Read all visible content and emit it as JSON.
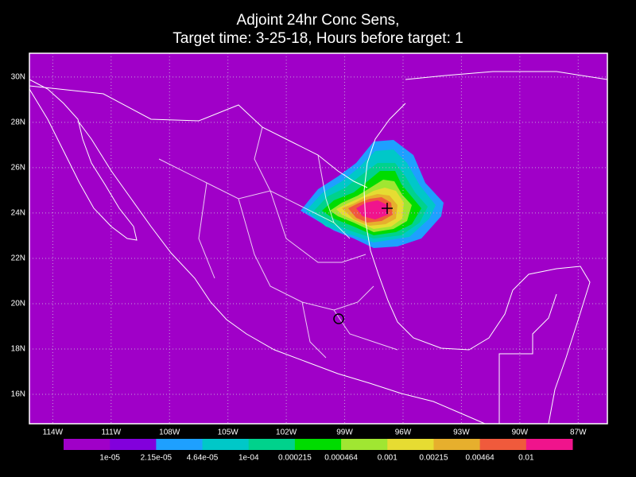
{
  "header": {
    "title_lines": [
      "Adjoint 24hr Conc Sens,",
      "Target time: 3-25-18, Hours before target: 1"
    ]
  },
  "map": {
    "xlim": [
      -115.2,
      -85.5
    ],
    "ylim": [
      14.7,
      31.05
    ],
    "grid": true,
    "background": "#a000c8",
    "xticks": [
      {
        "value": -114,
        "label": "114W"
      },
      {
        "value": -111,
        "label": "111W"
      },
      {
        "value": -108,
        "label": "108W"
      },
      {
        "value": -105,
        "label": "105W"
      },
      {
        "value": -102,
        "label": "102W"
      },
      {
        "value": -99,
        "label": "99W"
      },
      {
        "value": -96,
        "label": "96W"
      },
      {
        "value": -93,
        "label": "93W"
      },
      {
        "value": -90,
        "label": "90W"
      },
      {
        "value": -87,
        "label": "87W"
      }
    ],
    "yticks": [
      {
        "value": 16,
        "label": "16N"
      },
      {
        "value": 18,
        "label": "18N"
      },
      {
        "value": 20,
        "label": "20N"
      },
      {
        "value": 22,
        "label": "22N"
      },
      {
        "value": 24,
        "label": "24N"
      },
      {
        "value": 26,
        "label": "26N"
      },
      {
        "value": 28,
        "label": "28N"
      },
      {
        "value": 30,
        "label": "30N"
      }
    ]
  },
  "colorbar": {
    "colors": [
      "#a000c8",
      "#8200dc",
      "#1ea0ff",
      "#00c8c8",
      "#00d28c",
      "#00dc00",
      "#a0e632",
      "#e6dc32",
      "#e6af2d",
      "#f05a3c",
      "#f0148c"
    ],
    "labels": [
      "1e-05",
      "2.15e-05",
      "4.64e-05",
      "1e-04",
      "0.000215",
      "0.000464",
      "0.001",
      "0.00215",
      "0.00464",
      "0.01"
    ]
  }
}
